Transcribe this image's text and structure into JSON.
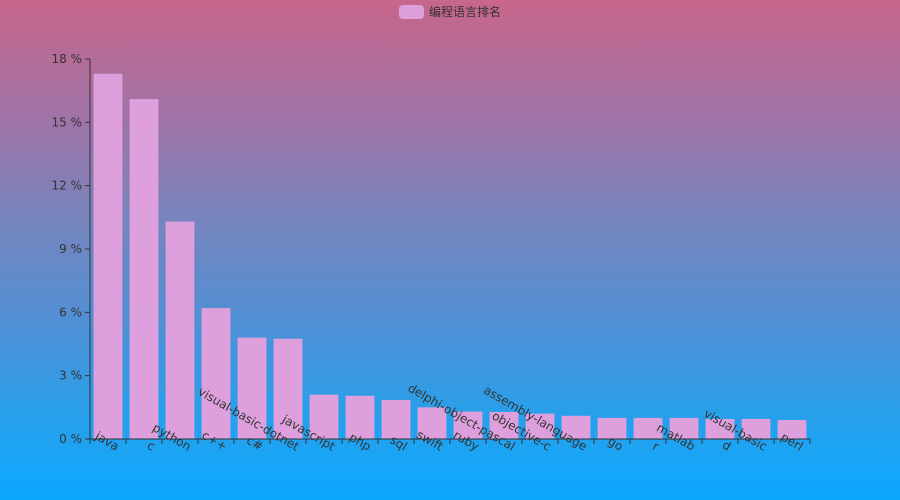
{
  "legend": {
    "label": "编程语言排名",
    "color": "#dda0dd"
  },
  "chart_data": {
    "type": "bar",
    "series": [
      {
        "name": "编程语言排名",
        "color": "#dda0dd",
        "values": [
          17.3,
          16.1,
          10.3,
          6.2,
          4.8,
          4.75,
          2.1,
          2.05,
          1.85,
          1.5,
          1.3,
          1.28,
          1.2,
          1.1,
          1.0,
          1.0,
          1.0,
          0.95,
          0.95,
          0.9
        ]
      }
    ],
    "categories": [
      "java",
      "c",
      "python",
      "c++",
      "c#",
      "visual-basic-dotnet",
      "javascript",
      "php",
      "sql",
      "swift",
      "ruby",
      "delphi-object-pascal",
      "objective-c",
      "assembly-language",
      "go",
      "r",
      "matlab",
      "d",
      "visual-basic",
      "perl"
    ],
    "yticks": [
      "0 %",
      "3 %",
      "6 %",
      "9 %",
      "12 %",
      "15 %",
      "18 %"
    ],
    "ylim": [
      0,
      18
    ],
    "yunit": "%",
    "grid": false,
    "legend_position": "top-center"
  }
}
